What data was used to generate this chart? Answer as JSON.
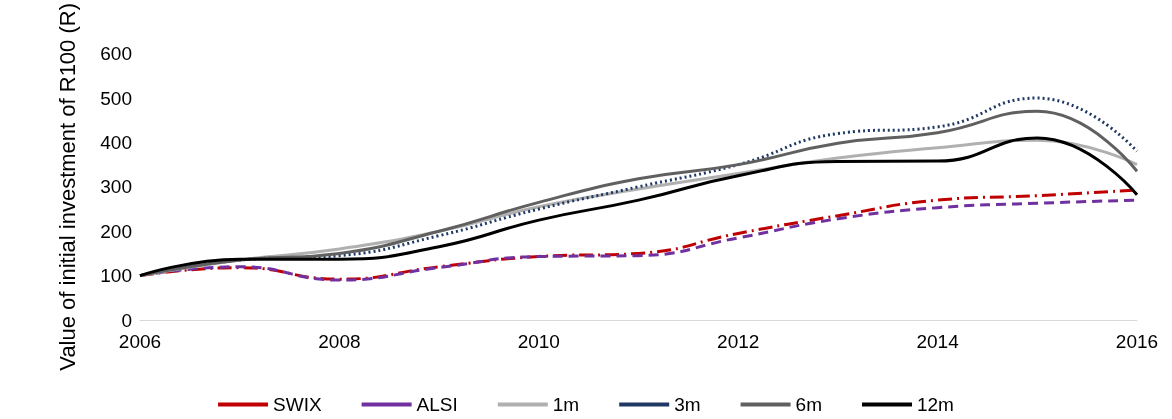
{
  "chart_data": {
    "type": "line",
    "ylabel": "Value of initial investment of R100 (R)",
    "x": [
      2006,
      2007,
      2008,
      2009,
      2010,
      2011,
      2012,
      2013,
      2014,
      2015,
      2016
    ],
    "series": [
      {
        "name": "SWIX",
        "color": "#c00000",
        "line_style": "dashdot",
        "values": [
          100,
          118,
          92,
          120,
          143,
          150,
          195,
          235,
          270,
          280,
          293
        ]
      },
      {
        "name": "ALSI",
        "color": "#7030a0",
        "line_style": "dashed",
        "values": [
          100,
          120,
          90,
          118,
          143,
          145,
          185,
          228,
          253,
          263,
          270
        ]
      },
      {
        "name": "1m",
        "color": "#b0b0b0",
        "line_style": "solid",
        "values": [
          100,
          135,
          160,
          200,
          255,
          295,
          330,
          365,
          388,
          405,
          350
        ]
      },
      {
        "name": "3m",
        "color": "#1f3864",
        "line_style": "dotted",
        "values": [
          100,
          135,
          145,
          190,
          250,
          300,
          350,
          420,
          435,
          500,
          380
        ]
      },
      {
        "name": "6m",
        "color": "#606060",
        "line_style": "solid",
        "values": [
          100,
          135,
          150,
          200,
          265,
          318,
          350,
          398,
          422,
          470,
          335
        ]
      },
      {
        "name": "12m",
        "color": "#000000",
        "line_style": "solid",
        "values": [
          100,
          137,
          137,
          165,
          225,
          270,
          325,
          357,
          358,
          410,
          282
        ]
      }
    ],
    "xlim": [
      2006,
      2016
    ],
    "xticks": [
      2006,
      2008,
      2010,
      2012,
      2014,
      2016
    ],
    "ylim": [
      0,
      600
    ],
    "yticks": [
      0,
      100,
      200,
      300,
      400,
      500,
      600
    ],
    "grid": false,
    "legend": "bottom",
    "marker": "none"
  }
}
